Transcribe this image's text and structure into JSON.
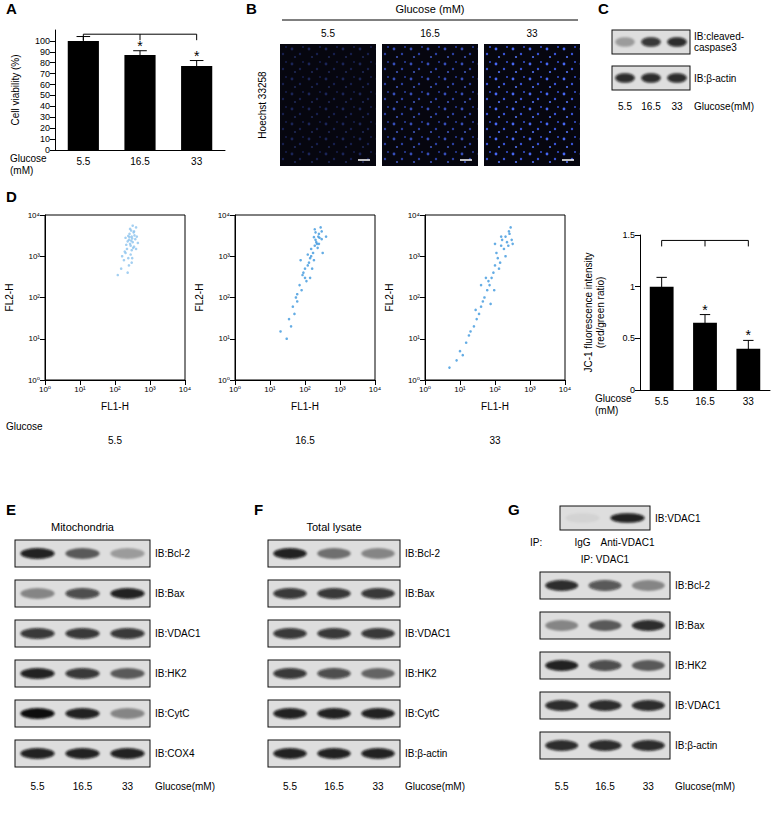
{
  "chart_data": [
    {
      "type": "bar",
      "ylabel": "Cell viability (%)",
      "xlabel": "Glucose (mM)",
      "categories": [
        "5.5",
        "16.5",
        "33"
      ],
      "values": [
        100,
        87,
        77
      ],
      "errors": [
        4,
        4,
        5
      ],
      "significance": [
        null,
        "*",
        "*"
      ],
      "color": "#000000",
      "ylim": [
        0,
        110
      ],
      "yticks": [
        0,
        10,
        20,
        30,
        40,
        50,
        60,
        70,
        80,
        90,
        100
      ],
      "grid": false
    },
    {
      "type": "scatter",
      "title": "5.5",
      "xlabel": "FL1-H",
      "ylabel": "FL2-H",
      "log": true,
      "grid": false,
      "color": "#8cc3ee",
      "xlim": [
        1,
        10000
      ],
      "ylim": [
        1,
        10000
      ],
      "xticks": [
        {
          "value": 1,
          "label": "10⁰"
        },
        {
          "value": 10,
          "label": "10¹"
        },
        {
          "value": 100,
          "label": "10²"
        },
        {
          "value": 1000,
          "label": "10³"
        },
        {
          "value": 10000,
          "label": "10⁴"
        }
      ],
      "yticks": [
        {
          "value": 1,
          "label": "10⁰"
        },
        {
          "value": 10,
          "label": "10¹"
        },
        {
          "value": 100,
          "label": "10²"
        },
        {
          "value": 1000,
          "label": "10³"
        },
        {
          "value": 10000,
          "label": "10⁴"
        }
      ],
      "x": [
        250,
        300,
        280,
        350,
        220,
        320,
        260,
        400,
        200,
        310,
        270,
        330,
        240,
        290,
        360,
        180,
        300,
        250,
        380,
        230,
        340,
        210,
        280,
        150,
        420,
        260,
        300,
        190,
        350,
        270,
        230,
        320,
        400,
        160,
        290,
        240,
        120,
        450,
        200,
        310
      ],
      "values": [
        2500,
        3000,
        1800,
        4000,
        1500,
        2200,
        3500,
        5000,
        1200,
        2700,
        2000,
        1600,
        900,
        4200,
        3200,
        800,
        1400,
        600,
        2600,
        2300,
        3800,
        1900,
        1100,
        500,
        3000,
        2900,
        700,
        1300,
        1700,
        4600,
        400,
        5500,
        1500,
        1000,
        2400,
        3100,
        350,
        2100,
        2800,
        900
      ]
    },
    {
      "type": "scatter",
      "title": "16.5",
      "xlabel": "FL1-H",
      "ylabel": "FL2-H",
      "log": true,
      "grid": false,
      "color": "#3d97dd",
      "xlim": [
        1,
        10000
      ],
      "ylim": [
        1,
        10000
      ],
      "xticks": [
        {
          "value": 1,
          "label": "10⁰"
        },
        {
          "value": 10,
          "label": "10¹"
        },
        {
          "value": 100,
          "label": "10²"
        },
        {
          "value": 1000,
          "label": "10³"
        },
        {
          "value": 10000,
          "label": "10⁴"
        }
      ],
      "yticks": [
        {
          "value": 1,
          "label": "10⁰"
        },
        {
          "value": 10,
          "label": "10¹"
        },
        {
          "value": 100,
          "label": "10²"
        },
        {
          "value": 1000,
          "label": "10³"
        },
        {
          "value": 10000,
          "label": "10⁴"
        }
      ],
      "x": [
        200,
        250,
        150,
        300,
        180,
        220,
        120,
        100,
        80,
        60,
        50,
        40,
        30,
        150,
        260,
        190,
        90,
        130,
        70,
        110,
        170,
        240,
        280,
        210,
        140,
        60,
        45,
        35,
        160,
        230,
        300,
        200,
        120,
        85,
        100,
        55,
        190,
        250,
        400,
        20,
        140,
        75,
        320,
        180
      ],
      "values": [
        2500,
        3500,
        1500,
        4000,
        800,
        2000,
        600,
        300,
        150,
        80,
        40,
        20,
        10,
        1000,
        2800,
        1800,
        400,
        700,
        200,
        250,
        1200,
        3000,
        5000,
        2200,
        900,
        120,
        60,
        30,
        500,
        1600,
        2600,
        3800,
        1100,
        350,
        500,
        100,
        4500,
        2000,
        3000,
        15,
        300,
        800,
        1200,
        2900
      ]
    },
    {
      "type": "scatter",
      "title": "33",
      "xlabel": "FL1-H",
      "ylabel": "FL2-H",
      "log": true,
      "grid": false,
      "color": "#3d97dd",
      "xlim": [
        1,
        10000
      ],
      "ylim": [
        1,
        10000
      ],
      "xticks": [
        {
          "value": 1,
          "label": "10⁰"
        },
        {
          "value": 10,
          "label": "10¹"
        },
        {
          "value": 100,
          "label": "10²"
        },
        {
          "value": 1000,
          "label": "10³"
        },
        {
          "value": 10000,
          "label": "10⁴"
        }
      ],
      "yticks": [
        {
          "value": 1,
          "label": "10⁰"
        },
        {
          "value": 10,
          "label": "10¹"
        },
        {
          "value": 100,
          "label": "10²"
        },
        {
          "value": 1000,
          "label": "10³"
        },
        {
          "value": 10000,
          "label": "10⁴"
        }
      ],
      "x": [
        200,
        250,
        150,
        300,
        100,
        80,
        60,
        40,
        30,
        20,
        15,
        10,
        8,
        5,
        120,
        180,
        220,
        90,
        70,
        50,
        35,
        25,
        140,
        160,
        260,
        110,
        45,
        18,
        12,
        280,
        200,
        130,
        65,
        55,
        95,
        150,
        240,
        40,
        320,
        100,
        75,
        28
      ],
      "values": [
        3000,
        4000,
        1800,
        2500,
        600,
        300,
        150,
        60,
        30,
        15,
        8,
        5,
        3,
        2,
        900,
        1500,
        2200,
        400,
        200,
        100,
        40,
        20,
        700,
        2500,
        3500,
        1200,
        80,
        12,
        4,
        5000,
        1000,
        500,
        250,
        300,
        150,
        3000,
        1800,
        200,
        2000,
        2000,
        70,
        50
      ]
    },
    {
      "type": "bar",
      "ylabel": "JC-1 fluorescence intensity (red/green ratio)",
      "xlabel": "Glucose (mM)",
      "categories": [
        "5.5",
        "16.5",
        "33"
      ],
      "values": [
        1,
        0.65,
        0.4
      ],
      "errors": [
        0.09,
        0.08,
        0.08
      ],
      "significance": [
        null,
        "*",
        "*"
      ],
      "color": "#000000",
      "ylim": [
        0,
        1.5
      ],
      "yticks": [
        0,
        0.5,
        1,
        1.5
      ],
      "grid": false
    }
  ],
  "figure": {
    "panel_labels": [
      "A",
      "B",
      "C",
      "D",
      "E",
      "F",
      "G"
    ],
    "B": {
      "header": "Glucose (mM)",
      "columns": [
        "5.5",
        "16.5",
        "33"
      ],
      "stain": "Hoechst 33258"
    },
    "C": {
      "rows": [
        {
          "label": "IB:cleaved-caspase3",
          "bands": [
            0.3,
            0.8,
            0.85
          ]
        },
        {
          "label": "IB:β-actin",
          "bands": [
            0.85,
            0.85,
            0.85
          ]
        }
      ],
      "lanes": [
        "5.5",
        "16.5",
        "33"
      ],
      "lane_title": "Glucose(mM)"
    },
    "D": {
      "row_label": "Glucose"
    },
    "E": {
      "title": "Mitochondria",
      "rows": [
        {
          "label": "IB:Bcl-2",
          "bands": [
            0.9,
            0.6,
            0.3
          ]
        },
        {
          "label": "IB:Bax",
          "bands": [
            0.4,
            0.7,
            0.9
          ]
        },
        {
          "label": "IB:VDAC1",
          "bands": [
            0.8,
            0.8,
            0.8
          ]
        },
        {
          "label": "IB:HK2",
          "bands": [
            0.9,
            0.8,
            0.6
          ]
        },
        {
          "label": "IB:CytC",
          "bands": [
            1,
            0.9,
            0.4
          ]
        },
        {
          "label": "IB:COX4",
          "bands": [
            0.9,
            0.9,
            0.9
          ]
        }
      ],
      "lanes": [
        "5.5",
        "16.5",
        "33"
      ],
      "lane_title": "Glucose(mM)"
    },
    "F": {
      "title": "Total lysate",
      "rows": [
        {
          "label": "IB:Bcl-2",
          "bands": [
            0.9,
            0.5,
            0.4
          ]
        },
        {
          "label": "IB:Bax",
          "bands": [
            0.8,
            0.8,
            0.8
          ]
        },
        {
          "label": "IB:VDAC1",
          "bands": [
            0.8,
            0.8,
            0.8
          ]
        },
        {
          "label": "IB:HK2",
          "bands": [
            0.8,
            0.7,
            0.55
          ]
        },
        {
          "label": "IB:CytC",
          "bands": [
            0.9,
            0.9,
            0.9
          ]
        },
        {
          "label": "IB:β-actin",
          "bands": [
            0.9,
            0.9,
            0.9
          ]
        }
      ],
      "lanes": [
        "5.5",
        "16.5",
        "33"
      ],
      "lane_title": "Glucose(mM)"
    },
    "G": {
      "ip_blot": {
        "prefix": "IP:",
        "lanes": [
          "IgG",
          "Anti-VDAC1"
        ],
        "label": "IB:VDAC1",
        "bands": [
          0.05,
          0.9
        ]
      },
      "subtitle": "IP: VDAC1",
      "rows": [
        {
          "label": "IB:Bcl-2",
          "bands": [
            0.85,
            0.65,
            0.4
          ]
        },
        {
          "label": "IB:Bax",
          "bands": [
            0.4,
            0.6,
            0.85
          ]
        },
        {
          "label": "IB:HK2",
          "bands": [
            0.9,
            0.7,
            0.6
          ]
        },
        {
          "label": "IB:VDAC1",
          "bands": [
            0.85,
            0.85,
            0.85
          ]
        },
        {
          "label": "IB:β-actin",
          "bands": [
            0.85,
            0.85,
            0.85
          ]
        }
      ],
      "lanes": [
        "5.5",
        "16.5",
        "33"
      ],
      "lane_title": "Glucose(mM)"
    }
  }
}
